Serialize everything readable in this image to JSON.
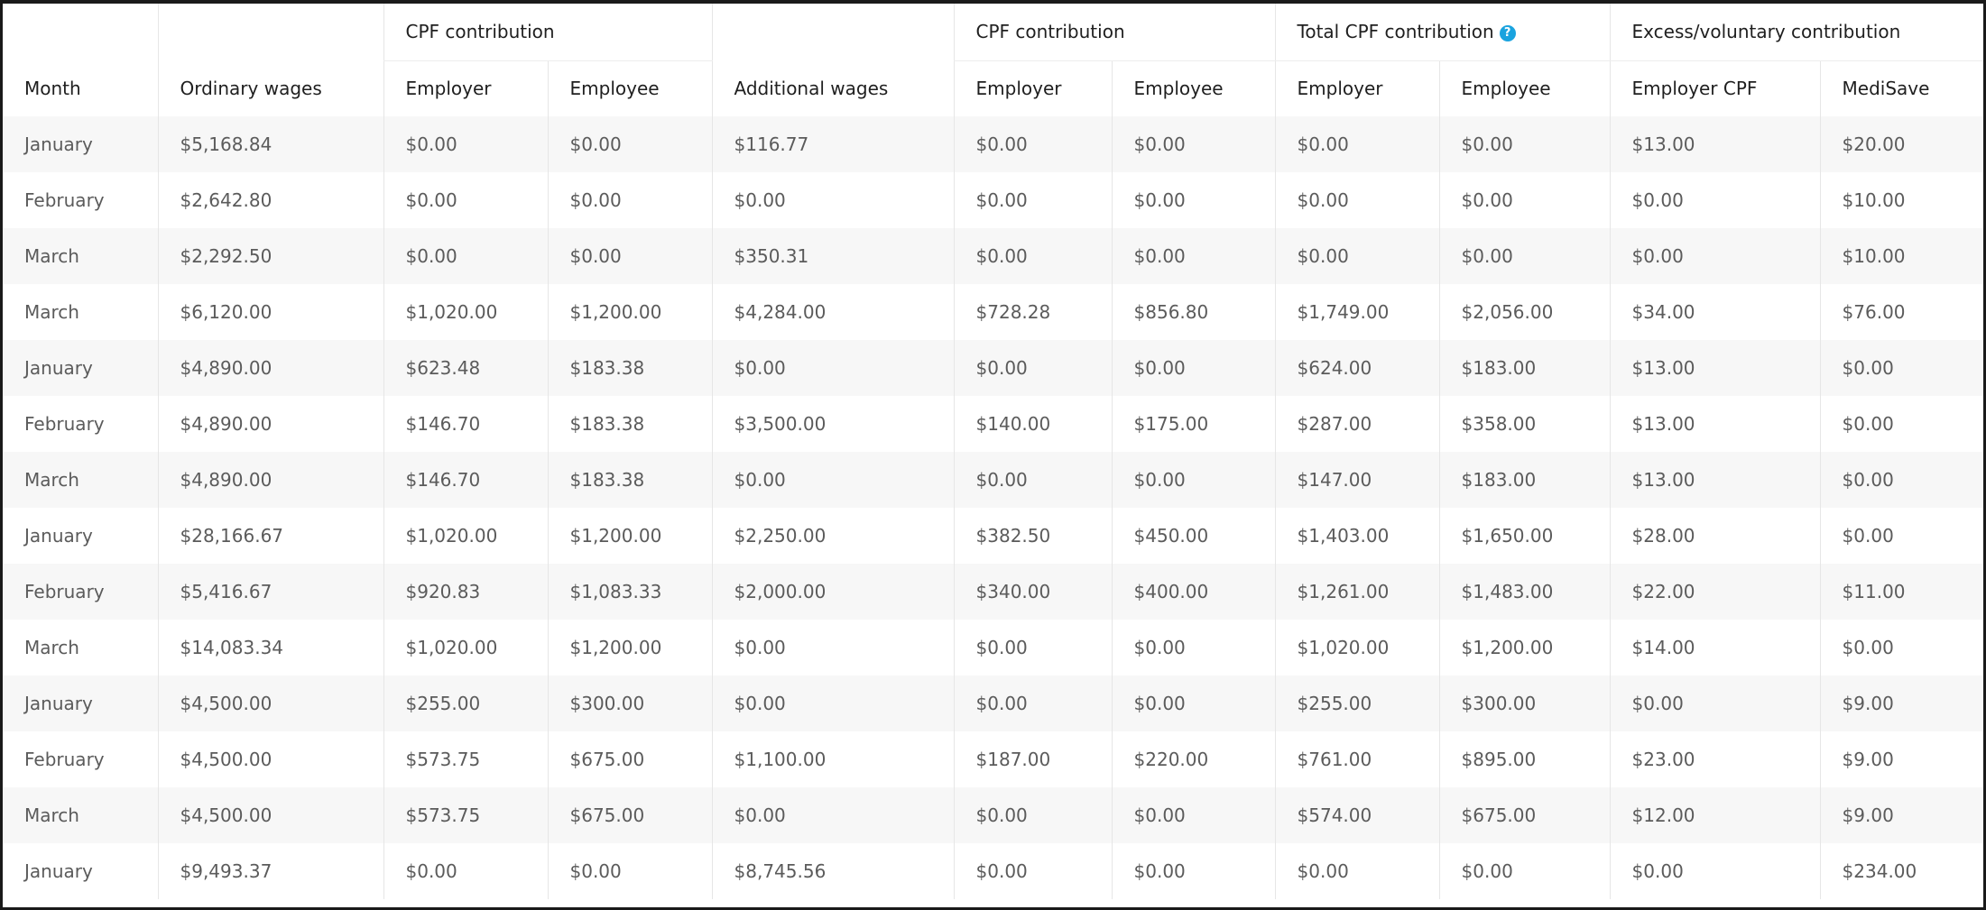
{
  "headers": {
    "group_cpf_1": "CPF contribution",
    "group_cpf_2": "CPF contribution",
    "group_total": "Total CPF contribution",
    "group_excess": "Excess/voluntary contribution",
    "month": "Month",
    "ordinary_wages": "Ordinary wages",
    "ow_employer": "Employer",
    "ow_employee": "Employee",
    "additional_wages": "Additional wages",
    "aw_employer": "Employer",
    "aw_employee": "Employee",
    "total_employer": "Employer",
    "total_employee": "Employee",
    "excess_employer_cpf": "Employer CPF",
    "excess_medisave": "MediSave"
  },
  "help_icon": {
    "glyph": "?",
    "name": "help-icon",
    "color": "#1aa3df"
  },
  "rows": [
    [
      "January",
      "$5,168.84",
      "$0.00",
      "$0.00",
      "$116.77",
      "$0.00",
      "$0.00",
      "$0.00",
      "$0.00",
      "$13.00",
      "$20.00"
    ],
    [
      "February",
      "$2,642.80",
      "$0.00",
      "$0.00",
      "$0.00",
      "$0.00",
      "$0.00",
      "$0.00",
      "$0.00",
      "$0.00",
      "$10.00"
    ],
    [
      "March",
      "$2,292.50",
      "$0.00",
      "$0.00",
      "$350.31",
      "$0.00",
      "$0.00",
      "$0.00",
      "$0.00",
      "$0.00",
      "$10.00"
    ],
    [
      "March",
      "$6,120.00",
      "$1,020.00",
      "$1,200.00",
      "$4,284.00",
      "$728.28",
      "$856.80",
      "$1,749.00",
      "$2,056.00",
      "$34.00",
      "$76.00"
    ],
    [
      "January",
      "$4,890.00",
      "$623.48",
      "$183.38",
      "$0.00",
      "$0.00",
      "$0.00",
      "$624.00",
      "$183.00",
      "$13.00",
      "$0.00"
    ],
    [
      "February",
      "$4,890.00",
      "$146.70",
      "$183.38",
      "$3,500.00",
      "$140.00",
      "$175.00",
      "$287.00",
      "$358.00",
      "$13.00",
      "$0.00"
    ],
    [
      "March",
      "$4,890.00",
      "$146.70",
      "$183.38",
      "$0.00",
      "$0.00",
      "$0.00",
      "$147.00",
      "$183.00",
      "$13.00",
      "$0.00"
    ],
    [
      "January",
      "$28,166.67",
      "$1,020.00",
      "$1,200.00",
      "$2,250.00",
      "$382.50",
      "$450.00",
      "$1,403.00",
      "$1,650.00",
      "$28.00",
      "$0.00"
    ],
    [
      "February",
      "$5,416.67",
      "$920.83",
      "$1,083.33",
      "$2,000.00",
      "$340.00",
      "$400.00",
      "$1,261.00",
      "$1,483.00",
      "$22.00",
      "$11.00"
    ],
    [
      "March",
      "$14,083.34",
      "$1,020.00",
      "$1,200.00",
      "$0.00",
      "$0.00",
      "$0.00",
      "$1,020.00",
      "$1,200.00",
      "$14.00",
      "$0.00"
    ],
    [
      "January",
      "$4,500.00",
      "$255.00",
      "$300.00",
      "$0.00",
      "$0.00",
      "$0.00",
      "$255.00",
      "$300.00",
      "$0.00",
      "$9.00"
    ],
    [
      "February",
      "$4,500.00",
      "$573.75",
      "$675.00",
      "$1,100.00",
      "$187.00",
      "$220.00",
      "$761.00",
      "$895.00",
      "$23.00",
      "$9.00"
    ],
    [
      "March",
      "$4,500.00",
      "$573.75",
      "$675.00",
      "$0.00",
      "$0.00",
      "$0.00",
      "$574.00",
      "$675.00",
      "$12.00",
      "$9.00"
    ],
    [
      "January",
      "$9,493.37",
      "$0.00",
      "$0.00",
      "$8,745.56",
      "$0.00",
      "$0.00",
      "$0.00",
      "$0.00",
      "$0.00",
      "$234.00"
    ]
  ]
}
